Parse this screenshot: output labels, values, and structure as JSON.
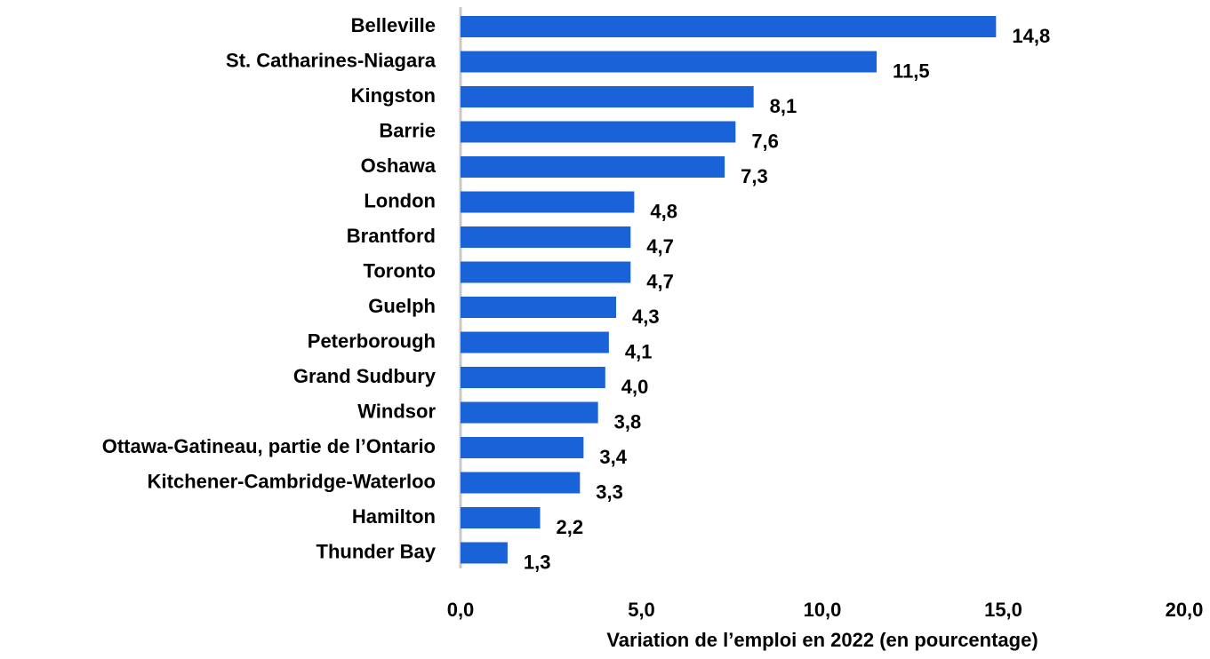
{
  "chart_data": {
    "type": "barh",
    "xlabel": "Variation de l’emploi en 2022 (en pourcentage)",
    "categories": [
      "Belleville",
      "St. Catharines-Niagara",
      "Kingston",
      "Barrie",
      "Oshawa",
      "London",
      "Brantford",
      "Toronto",
      "Guelph",
      "Peterborough",
      "Grand Sudbury",
      "Windsor",
      "Ottawa-Gatineau, partie de l’Ontario",
      "Kitchener-Cambridge-Waterloo",
      "Hamilton",
      "Thunder Bay"
    ],
    "values": [
      14.8,
      11.5,
      8.1,
      7.6,
      7.3,
      4.8,
      4.7,
      4.7,
      4.3,
      4.1,
      4.0,
      3.8,
      3.4,
      3.3,
      2.2,
      1.3
    ],
    "value_labels": [
      "14,8",
      "11,5",
      "8,1",
      "7,6",
      "7,3",
      "4,8",
      "4,7",
      "4,7",
      "4,3",
      "4,1",
      "4,0",
      "3,8",
      "3,4",
      "3,3",
      "2,2",
      "1,3"
    ],
    "color": "#1a62d8",
    "xlim": [
      0,
      20
    ],
    "xticks": [
      {
        "value": 0,
        "label": "0,0"
      },
      {
        "value": 5,
        "label": "5,0"
      },
      {
        "value": 10,
        "label": "10,0"
      },
      {
        "value": 15,
        "label": "15,0"
      },
      {
        "value": 20,
        "label": "20,0"
      }
    ],
    "grid": false
  }
}
